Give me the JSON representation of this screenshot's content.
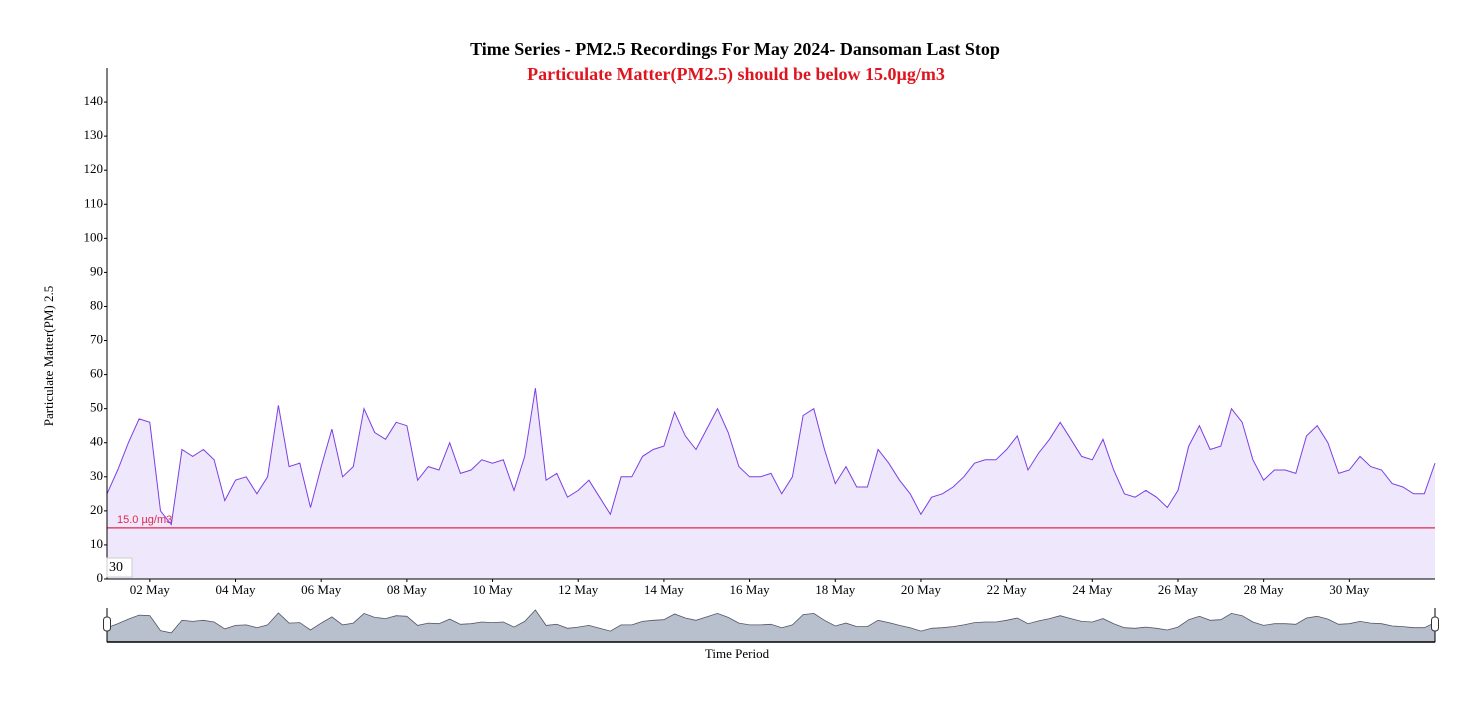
{
  "chart_data": {
    "type": "line",
    "title": "Time Series - PM2.5 Recordings For May 2024- Dansoman Last Stop",
    "subtitle": "Particulate Matter(PM2.5) should be below 15.0µg/m3",
    "x_label": "Time Period",
    "y_label": "Particulate Matter(PM) 2.5",
    "roll_period": 30,
    "threshold": {
      "value": 15,
      "label": "15.0 µg/m3",
      "color": "#e0284c"
    },
    "xlim": [
      1,
      32
    ],
    "ylim": [
      0,
      150
    ],
    "yticks": [
      0,
      10,
      20,
      30,
      40,
      50,
      60,
      70,
      80,
      90,
      100,
      110,
      120,
      130,
      140
    ],
    "xticks": [
      {
        "value": 2,
        "label": "02 May"
      },
      {
        "value": 4,
        "label": "04 May"
      },
      {
        "value": 6,
        "label": "06 May"
      },
      {
        "value": 8,
        "label": "08 May"
      },
      {
        "value": 10,
        "label": "10 May"
      },
      {
        "value": 12,
        "label": "12 May"
      },
      {
        "value": 14,
        "label": "14 May"
      },
      {
        "value": 16,
        "label": "16 May"
      },
      {
        "value": 18,
        "label": "18 May"
      },
      {
        "value": 20,
        "label": "20 May"
      },
      {
        "value": 22,
        "label": "22 May"
      },
      {
        "value": 24,
        "label": "24 May"
      },
      {
        "value": 26,
        "label": "26 May"
      },
      {
        "value": 28,
        "label": "28 May"
      },
      {
        "value": 30,
        "label": "30 May"
      }
    ],
    "x": [
      1,
      1.25,
      1.5,
      1.75,
      2,
      2.25,
      2.5,
      2.75,
      3,
      3.25,
      3.5,
      3.75,
      4,
      4.25,
      4.5,
      4.75,
      5,
      5.25,
      5.5,
      5.75,
      6,
      6.25,
      6.5,
      6.75,
      7,
      7.25,
      7.5,
      7.75,
      8,
      8.25,
      8.5,
      8.75,
      9,
      9.25,
      9.5,
      9.75,
      10,
      10.25,
      10.5,
      10.75,
      11,
      11.25,
      11.5,
      11.75,
      12,
      12.25,
      12.5,
      12.75,
      13,
      13.25,
      13.5,
      13.75,
      14,
      14.25,
      14.5,
      14.75,
      15,
      15.25,
      15.5,
      15.75,
      16,
      16.25,
      16.5,
      16.75,
      17,
      17.25,
      17.5,
      17.75,
      18,
      18.25,
      18.5,
      18.75,
      19,
      19.25,
      19.5,
      19.75,
      20,
      20.25,
      20.5,
      20.75,
      21,
      21.25,
      21.5,
      21.75,
      22,
      22.25,
      22.5,
      22.75,
      23,
      23.25,
      23.5,
      23.75,
      24,
      24.25,
      24.5,
      24.75,
      25,
      25.25,
      25.5,
      25.75,
      26,
      26.25,
      26.5,
      26.75,
      27,
      27.25,
      27.5,
      27.75,
      28,
      28.25,
      28.5,
      28.75,
      29,
      29.25,
      29.5,
      29.75,
      30,
      30.25,
      30.5,
      30.75,
      31,
      31.25,
      31.5,
      31.75,
      32
    ],
    "series": [
      {
        "name": "PM2.5",
        "color": "#7b3fe4",
        "fill": "#efe8fc",
        "values": [
          25,
          32,
          40,
          47,
          46,
          20,
          16,
          38,
          36,
          38,
          35,
          23,
          29,
          30,
          25,
          30,
          51,
          33,
          34,
          21,
          33,
          44,
          30,
          33,
          50,
          43,
          41,
          46,
          45,
          29,
          33,
          32,
          40,
          31,
          32,
          35,
          34,
          35,
          26,
          36,
          56,
          29,
          31,
          24,
          26,
          29,
          24,
          19,
          30,
          30,
          36,
          38,
          39,
          49,
          42,
          38,
          44,
          50,
          43,
          33,
          30,
          30,
          31,
          25,
          30,
          48,
          50,
          38,
          28,
          33,
          27,
          27,
          38,
          34,
          29,
          25,
          19,
          24,
          25,
          27,
          30,
          34,
          35,
          35,
          38,
          42,
          32,
          37,
          41,
          46,
          41,
          36,
          35,
          41,
          32,
          25,
          24,
          26,
          24,
          21,
          26,
          39,
          45,
          38,
          39,
          50,
          46,
          35,
          29,
          32,
          32,
          31,
          42,
          45,
          40,
          31,
          32,
          36,
          33,
          32,
          28,
          27,
          25,
          25,
          34
        ]
      }
    ]
  }
}
